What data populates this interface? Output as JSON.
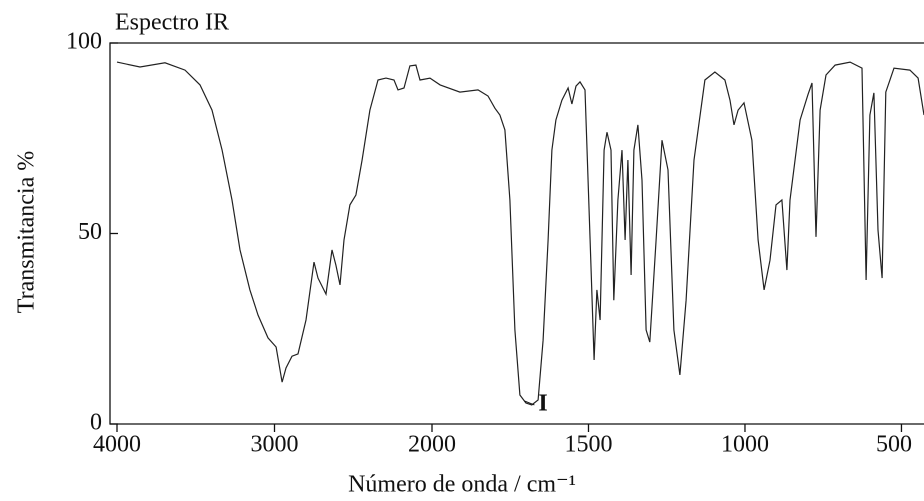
{
  "chart_data": {
    "type": "line",
    "title": "Espectro IR",
    "xlabel": "Número de onda / cm⁻¹",
    "ylabel": "Transmitancia %",
    "color": "#222222",
    "xlim": [
      4000,
      428
    ],
    "x_scale_break": 2000,
    "ylim": [
      0,
      100
    ],
    "xticks": [
      4000,
      3000,
      2000,
      1500,
      1000,
      500
    ],
    "yticks": [
      0,
      50,
      100
    ],
    "x": [
      4000,
      3854,
      3695,
      3568,
      3473,
      3397,
      3333,
      3270,
      3219,
      3156,
      3105,
      3041,
      2990,
      2952,
      2927,
      2889,
      2851,
      2800,
      2749,
      2724,
      2673,
      2635,
      2610,
      2584,
      2559,
      2521,
      2483,
      2444,
      2394,
      2343,
      2292,
      2241,
      2216,
      2178,
      2140,
      2102,
      2076,
      2013,
      1974,
      1911,
      1853,
      1821,
      1799,
      1783,
      1767,
      1751,
      1735,
      1719,
      1700,
      1681,
      1661,
      1645,
      1629,
      1617,
      1604,
      1585,
      1565,
      1553,
      1540,
      1527,
      1511,
      1495,
      1482,
      1473,
      1463,
      1450,
      1441,
      1428,
      1419,
      1406,
      1393,
      1383,
      1374,
      1364,
      1355,
      1342,
      1329,
      1316,
      1304,
      1284,
      1265,
      1246,
      1227,
      1208,
      1188,
      1163,
      1128,
      1096,
      1064,
      1048,
      1035,
      1022,
      1003,
      978,
      958,
      939,
      920,
      901,
      882,
      866,
      856,
      824,
      799,
      786,
      773,
      760,
      741,
      712,
      664,
      626,
      613,
      601,
      588,
      575,
      562,
      550,
      524,
      473,
      447,
      428
    ],
    "values": [
      95,
      93.7,
      94.8,
      92.9,
      89,
      82.4,
      71.9,
      58.8,
      45.7,
      35.2,
      28.6,
      22.6,
      20.2,
      11,
      14.7,
      17.8,
      18.4,
      27.3,
      42.5,
      38.3,
      34.1,
      45.7,
      41.7,
      36.5,
      48.3,
      57.5,
      60.1,
      69.3,
      82.4,
      90.3,
      90.8,
      90.3,
      87.7,
      88.2,
      94,
      94.2,
      90.3,
      90.8,
      89,
      87.1,
      87.7,
      86.1,
      82.9,
      81.1,
      77.2,
      58.8,
      24.7,
      7.6,
      5.5,
      5,
      6.3,
      22,
      48.3,
      71.9,
      79.8,
      85,
      88.2,
      84,
      88.7,
      89.8,
      87.7,
      48.3,
      16.8,
      35.2,
      27.3,
      71.9,
      76.6,
      71.9,
      32.5,
      58.8,
      71.9,
      48.3,
      69.3,
      39.1,
      71.9,
      78.5,
      64,
      24.7,
      21.5,
      48.3,
      74.5,
      66.7,
      24.7,
      12.9,
      32.5,
      69.3,
      90.3,
      92.4,
      90.3,
      85,
      78.5,
      82.4,
      84.3,
      74.5,
      48.3,
      35.2,
      43,
      57.5,
      58.8,
      40.4,
      58.8,
      79.8,
      86.4,
      89.5,
      49.1,
      82.4,
      91.6,
      94.2,
      95,
      93.4,
      37.8,
      81.1,
      86.9,
      50.9,
      38.3,
      87.1,
      93.4,
      92.9,
      90.8,
      81.1
    ],
    "annotations": [
      {
        "text": "I",
        "x": 1660,
        "y": 5
      }
    ]
  }
}
